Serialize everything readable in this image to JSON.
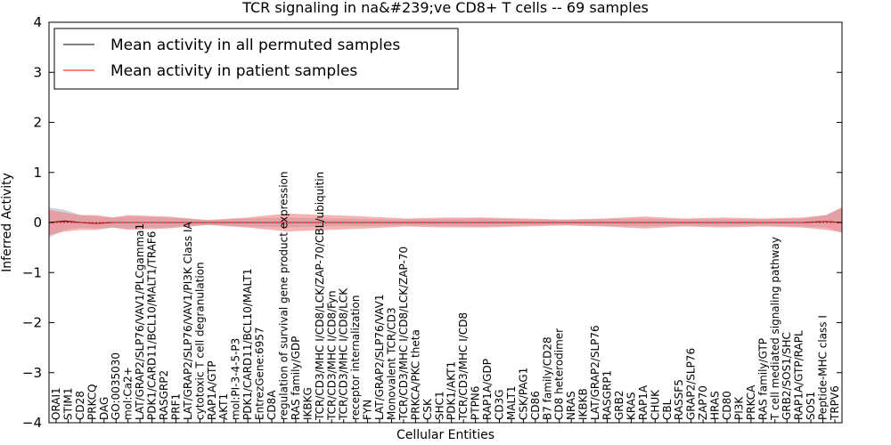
{
  "chart_data": {
    "type": "line",
    "title": "TCR signaling in na&#239;ve CD8+ T cells -- 69 samples",
    "xlabel": "Cellular Entities",
    "ylabel": "Inferred Activity",
    "ylim": [
      -4,
      4
    ],
    "yticks": [
      4,
      3,
      2,
      1,
      0,
      -1,
      -2,
      -3,
      -4
    ],
    "ytick_labels": [
      "4",
      "3",
      "2",
      "1",
      "0",
      "−1",
      "−2",
      "−3",
      "−4"
    ],
    "xlim": [
      0,
      100
    ],
    "legend_position": "top-left",
    "categories": [
      "ORAI1",
      "STIM1",
      "CD28",
      "PRKCQ",
      "DAG",
      "GO:0035030",
      "mol:Ca2+",
      "LAT/GRAP2/SLP76/VAV1/PLCgamma1",
      "PDK1/CARD11/BCL10/MALT1/TRAF6",
      "RASGRP2",
      "PRF1",
      "LAT/GRAP2/SLP76/VAV1/PI3K Class IA",
      "cytotoxic T cell degranulation",
      "RAP1A/GTP",
      "AKT1",
      "mol:PI-3-4-5-P3",
      "PDK1/CARD11/BCL10/MALT1",
      "EntrezGene:6957",
      "CD8A",
      "regulation of survival gene product expression",
      "RAS family/GDP",
      "IKBKG",
      "TCR/CD3/MHC I/CD8/LCK/ZAP-70/CBL/ubiquitin",
      "TCR/CD3/MHC I/CD8/Fyn",
      "TCR/CD3/MHC I/CD8/LCK",
      "receptor internalization",
      "FYN",
      "LAT/GRAP2/SLP76/VAV1",
      "Monovalent TCR/CD3",
      "TCR/CD3/MHC I/CD8/LCK/ZAP-70",
      "PRKCA/PKC theta",
      "CSK",
      "SHC1",
      "PDK1/AKT1",
      "TCR/CD3/MHC I/CD8",
      "PTPN6",
      "RAP1A/GDP",
      "CD3G",
      "MALT1",
      "CSK/PAG1",
      "CD86",
      "B7 family/CD28",
      "CD8 heterodimer",
      "NRAS",
      "IKBKB",
      "LAT/GRAP2/SLP76",
      "RASGRP1",
      "GRB2",
      "KRAS",
      "RAP1A",
      "CHUK",
      "CBL",
      "RASSF5",
      "GRAP2/SLP76",
      "ZAP70",
      "HRAS",
      "CD80",
      "PI3K",
      "PRKCA",
      "RAS family/GTP",
      "T cell mediated signaling pathway",
      "GRB2/SOS1/SHC",
      "RAP1A/GTP/RAPL",
      "SOS1",
      "Peptide-MHC class I",
      "TRPV6"
    ],
    "legend": [
      "Mean activity in all permuted samples",
      "Mean activity in patient samples"
    ],
    "series": [
      {
        "name": "Mean activity in all permuted samples",
        "color": "#000000",
        "x": [
          0,
          2,
          4,
          6,
          8,
          10,
          15,
          20,
          25,
          30,
          35,
          40,
          45,
          50,
          55,
          60,
          65,
          70,
          75,
          80,
          85,
          90,
          95,
          98,
          100
        ],
        "values": [
          0.0,
          0.03,
          0.0,
          -0.02,
          0.0,
          0.0,
          0.0,
          0.0,
          0.0,
          0.0,
          0.0,
          0.0,
          0.0,
          0.0,
          0.0,
          0.0,
          0.0,
          0.0,
          0.0,
          0.0,
          0.0,
          0.0,
          0.0,
          0.02,
          0.0
        ],
        "band_low": [
          -0.3,
          -0.15,
          -0.1,
          -0.12,
          -0.1,
          -0.12,
          -0.1,
          -0.05,
          -0.08,
          -0.1,
          -0.08,
          -0.07,
          -0.06,
          -0.07,
          -0.08,
          -0.06,
          -0.05,
          -0.07,
          -0.08,
          -0.06,
          -0.07,
          -0.06,
          -0.08,
          -0.1,
          -0.2
        ],
        "band_high": [
          0.3,
          0.25,
          0.15,
          0.12,
          0.1,
          0.12,
          0.1,
          0.05,
          0.08,
          0.1,
          0.08,
          0.07,
          0.06,
          0.07,
          0.08,
          0.06,
          0.05,
          0.07,
          0.08,
          0.06,
          0.07,
          0.06,
          0.08,
          0.15,
          0.3
        ]
      },
      {
        "name": "Mean activity in patient samples",
        "color": "#ff0000",
        "x": [
          0,
          2,
          4,
          6,
          8,
          10,
          15,
          20,
          25,
          30,
          35,
          40,
          45,
          50,
          55,
          60,
          65,
          70,
          75,
          80,
          85,
          90,
          95,
          98,
          100
        ],
        "values": [
          0.0,
          0.02,
          0.0,
          -0.02,
          0.0,
          0.0,
          0.0,
          0.0,
          0.0,
          0.0,
          0.0,
          0.0,
          0.0,
          0.0,
          0.0,
          0.0,
          0.0,
          0.0,
          0.0,
          0.0,
          0.0,
          0.0,
          0.0,
          0.02,
          0.0
        ],
        "band_low": [
          -0.25,
          -0.18,
          -0.15,
          -0.15,
          -0.1,
          -0.15,
          -0.12,
          -0.05,
          -0.1,
          -0.18,
          -0.15,
          -0.12,
          -0.08,
          -0.1,
          -0.1,
          -0.08,
          -0.06,
          -0.08,
          -0.12,
          -0.08,
          -0.1,
          -0.08,
          -0.1,
          -0.15,
          -0.2
        ],
        "band_high": [
          0.25,
          0.2,
          0.15,
          0.15,
          0.1,
          0.15,
          0.12,
          0.05,
          0.1,
          0.18,
          0.15,
          0.12,
          0.08,
          0.1,
          0.1,
          0.08,
          0.06,
          0.08,
          0.12,
          0.08,
          0.1,
          0.08,
          0.1,
          0.15,
          0.3
        ]
      }
    ]
  }
}
